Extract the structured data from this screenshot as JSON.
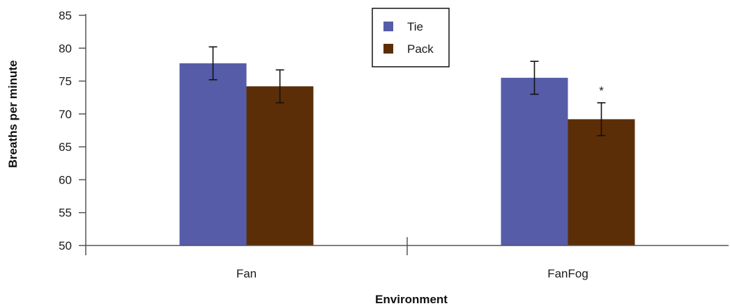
{
  "chart_data": {
    "type": "bar",
    "categories": [
      "Fan",
      "FanFog"
    ],
    "series": [
      {
        "name": "Tie",
        "values": [
          77.7,
          75.5
        ],
        "error": [
          2.5,
          2.5
        ],
        "color": "#565ca8"
      },
      {
        "name": "Pack",
        "values": [
          74.2,
          69.2
        ],
        "error": [
          2.5,
          2.5
        ],
        "color": "#5c2e07"
      }
    ],
    "xlabel": "Environment",
    "ylabel": "Breaths per minute",
    "ylim": [
      50,
      85
    ],
    "yticks": [
      "50",
      "55",
      "60",
      "65",
      "70",
      "75",
      "80",
      "85"
    ],
    "yticks_values": [
      50,
      55,
      60,
      65,
      70,
      75,
      80,
      85
    ],
    "legend": {
      "placement": "top-center",
      "entries": [
        "Tie",
        "Pack"
      ]
    },
    "grid": false,
    "annotations": [
      {
        "text": "*",
        "category": "FanFog",
        "series": "Pack"
      }
    ]
  }
}
